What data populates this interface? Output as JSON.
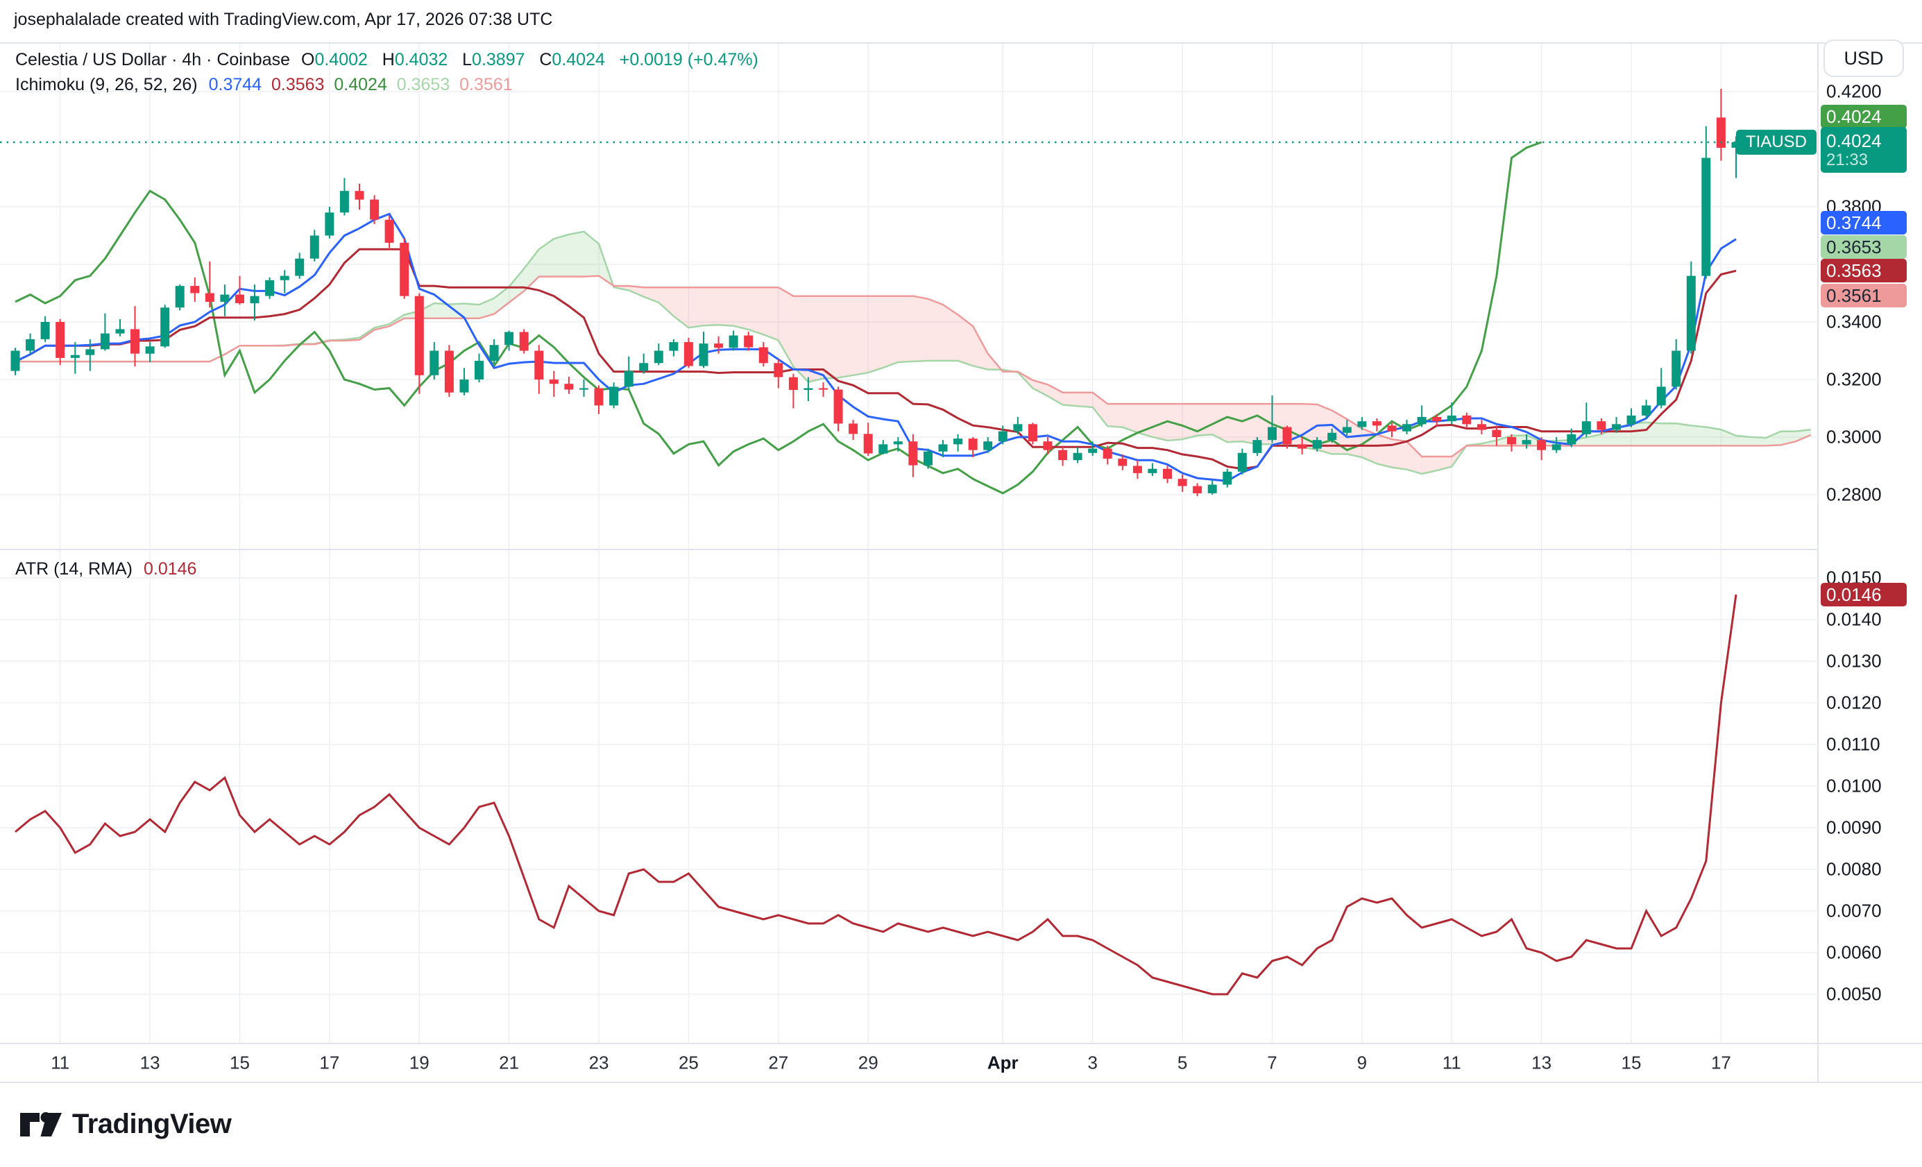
{
  "header": {
    "text": "josephalalade created with TradingView.com, Apr 17, 2026 07:38 UTC"
  },
  "symbol_line": {
    "title": "Celestia / US Dollar · 4h · Coinbase",
    "o_label": "O",
    "o": "0.4002",
    "h_label": "H",
    "h": "0.4032",
    "l_label": "L",
    "l": "0.3897",
    "c_label": "C",
    "c": "0.4024",
    "change": "+0.0019 (+0.47%)"
  },
  "ichimoku_line": {
    "name": "Ichimoku (9, 26, 52, 26)",
    "conversion": "0.3744",
    "base": "0.3563",
    "lagging": "0.4024",
    "lead_a": "0.3653",
    "lead_b": "0.3561"
  },
  "atr_line": {
    "name": "ATR (14, RMA)",
    "value": "0.0146"
  },
  "price_axis": {
    "currency": "USD",
    "labels": [
      {
        "text": "0.4200",
        "value": 0.42
      },
      {
        "text": "0.3800",
        "value": 0.38
      },
      {
        "text": "0.3600",
        "value": 0.36
      },
      {
        "text": "0.3400",
        "value": 0.34
      },
      {
        "text": "0.3200",
        "value": 0.32
      },
      {
        "text": "0.3000",
        "value": 0.3
      },
      {
        "text": "0.2800",
        "value": 0.28
      }
    ],
    "badges": [
      {
        "text": "0.4024",
        "value": 0.4024,
        "bg": "#43A047",
        "fg": "#ffffff",
        "offset": -37,
        "name": "ichimoku-lagging-badge"
      },
      {
        "text": "0.3744",
        "value": 0.3744,
        "bg": "#2962FF",
        "fg": "#ffffff",
        "offset": 0,
        "name": "ichimoku-conversion-badge"
      },
      {
        "text": "0.3653",
        "value": 0.3653,
        "bg": "#A5D6A7",
        "fg": "#1b2733",
        "offset": -3,
        "name": "ichimoku-leada-badge"
      },
      {
        "text": "0.3563",
        "value": 0.3563,
        "bg": "#B22833",
        "fg": "#ffffff",
        "offset": -6,
        "name": "ichimoku-base-badge"
      },
      {
        "text": "0.3561",
        "value": 0.3561,
        "bg": "#EF9A9A",
        "fg": "#1b2733",
        "offset": 29,
        "name": "ichimoku-leadb-badge"
      }
    ],
    "last_price": {
      "symbol": "TIAUSD",
      "price": "0.4024",
      "value": 0.4024,
      "countdown": "21:33",
      "bg": "#089981"
    }
  },
  "atr_axis": {
    "labels": [
      {
        "text": "0.0150",
        "value": 0.015
      },
      {
        "text": "0.0140",
        "value": 0.014
      },
      {
        "text": "0.0130",
        "value": 0.013
      },
      {
        "text": "0.0120",
        "value": 0.012
      },
      {
        "text": "0.0110",
        "value": 0.011
      },
      {
        "text": "0.0100",
        "value": 0.01
      },
      {
        "text": "0.0090",
        "value": 0.009
      },
      {
        "text": "0.0080",
        "value": 0.008
      },
      {
        "text": "0.0070",
        "value": 0.007
      },
      {
        "text": "0.0060",
        "value": 0.006
      },
      {
        "text": "0.0050",
        "value": 0.005
      }
    ],
    "badge": {
      "text": "0.0146",
      "value": 0.0146,
      "bg": "#B22833",
      "fg": "#ffffff"
    }
  },
  "time_axis": {
    "ticks": [
      {
        "label": "11",
        "bar": 3
      },
      {
        "label": "13",
        "bar": 9
      },
      {
        "label": "15",
        "bar": 15
      },
      {
        "label": "17",
        "bar": 21
      },
      {
        "label": "19",
        "bar": 27
      },
      {
        "label": "21",
        "bar": 33
      },
      {
        "label": "23",
        "bar": 39
      },
      {
        "label": "25",
        "bar": 45
      },
      {
        "label": "27",
        "bar": 51
      },
      {
        "label": "29",
        "bar": 57
      },
      {
        "label": "Apr",
        "bar": 66,
        "bold": true
      },
      {
        "label": "3",
        "bar": 72
      },
      {
        "label": "5",
        "bar": 78
      },
      {
        "label": "7",
        "bar": 84
      },
      {
        "label": "9",
        "bar": 90
      },
      {
        "label": "11",
        "bar": 96
      },
      {
        "label": "13",
        "bar": 102
      },
      {
        "label": "15",
        "bar": 108
      },
      {
        "label": "17",
        "bar": 114
      }
    ]
  },
  "footer": {
    "brand": "TradingView"
  },
  "colors": {
    "up": "#089981",
    "down": "#F23645",
    "conversion": "#2962FF",
    "base": "#B22833",
    "lagging": "#43A047",
    "lead_a": "#A5D6A7",
    "lead_b": "#EF9A9A",
    "cloud_green": "rgba(76,175,80,0.14)",
    "cloud_red": "rgba(244,97,97,0.16)",
    "atr": "#B22833",
    "grid": "#eeeff2",
    "border": "#e0e3eb",
    "last_price_line": "#089981"
  },
  "chart_data": [
    {
      "type": "candlestick",
      "title": "Celestia / US Dollar · 4h · Coinbase (TIA/USD)",
      "ylabel": "USD",
      "y_axis": {
        "min": 0.264,
        "max": 0.424,
        "tick_step": 0.02,
        "ticks": [
          0.42,
          0.38,
          0.36,
          0.34,
          0.32,
          0.3,
          0.28
        ]
      },
      "x_axis": {
        "start": "Mar 10",
        "end": "Apr 17",
        "note": "bars are ~8h aggregates of the 4h chart"
      },
      "last_price": 0.4024,
      "ohlc_current": {
        "open": 0.4002,
        "high": 0.4032,
        "low": 0.3897,
        "close": 0.4024,
        "change": 0.0019,
        "change_pct": 0.47
      },
      "ichimoku": {
        "params": [
          9,
          26,
          52,
          26
        ],
        "current": {
          "conversion": 0.3744,
          "base": 0.3563,
          "lagging": 0.4024,
          "lead_a": 0.3653,
          "lead_b": 0.3561
        }
      },
      "candles": [
        [
          0.323,
          0.331,
          0.3215,
          0.33
        ],
        [
          0.33,
          0.336,
          0.329,
          0.334
        ],
        [
          0.334,
          0.342,
          0.333,
          0.34
        ],
        [
          0.34,
          0.341,
          0.325,
          0.3275
        ],
        [
          0.3275,
          0.333,
          0.322,
          0.3285
        ],
        [
          0.3285,
          0.334,
          0.323,
          0.3305
        ],
        [
          0.3305,
          0.343,
          0.33,
          0.336
        ],
        [
          0.336,
          0.341,
          0.335,
          0.3375
        ],
        [
          0.3375,
          0.3455,
          0.3245,
          0.329
        ],
        [
          0.329,
          0.333,
          0.326,
          0.3315
        ],
        [
          0.3315,
          0.346,
          0.331,
          0.345
        ],
        [
          0.345,
          0.353,
          0.344,
          0.3525
        ],
        [
          0.3525,
          0.3555,
          0.347,
          0.35
        ],
        [
          0.35,
          0.361,
          0.345,
          0.347
        ],
        [
          0.347,
          0.353,
          0.342,
          0.3495
        ],
        [
          0.3495,
          0.356,
          0.346,
          0.3465
        ],
        [
          0.3465,
          0.353,
          0.3405,
          0.349
        ],
        [
          0.349,
          0.3555,
          0.348,
          0.3545
        ],
        [
          0.3545,
          0.358,
          0.35,
          0.356
        ],
        [
          0.356,
          0.364,
          0.355,
          0.362
        ],
        [
          0.362,
          0.372,
          0.361,
          0.37
        ],
        [
          0.37,
          0.38,
          0.369,
          0.378
        ],
        [
          0.378,
          0.39,
          0.377,
          0.3855
        ],
        [
          0.3855,
          0.388,
          0.379,
          0.3825
        ],
        [
          0.3825,
          0.384,
          0.374,
          0.3755
        ],
        [
          0.3755,
          0.377,
          0.365,
          0.3675
        ],
        [
          0.3675,
          0.369,
          0.348,
          0.349
        ],
        [
          0.349,
          0.35,
          0.315,
          0.3215
        ],
        [
          0.3215,
          0.333,
          0.32,
          0.33
        ],
        [
          0.33,
          0.332,
          0.314,
          0.3155
        ],
        [
          0.3155,
          0.324,
          0.3145,
          0.32
        ],
        [
          0.32,
          0.329,
          0.319,
          0.3265
        ],
        [
          0.3265,
          0.334,
          0.3255,
          0.332
        ],
        [
          0.332,
          0.337,
          0.33,
          0.3365
        ],
        [
          0.3365,
          0.3375,
          0.329,
          0.33
        ],
        [
          0.33,
          0.332,
          0.315,
          0.32
        ],
        [
          0.32,
          0.323,
          0.314,
          0.3185
        ],
        [
          0.3185,
          0.321,
          0.315,
          0.3165
        ],
        [
          0.3165,
          0.32,
          0.314,
          0.317
        ],
        [
          0.317,
          0.318,
          0.308,
          0.311
        ],
        [
          0.311,
          0.319,
          0.31,
          0.3175
        ],
        [
          0.3175,
          0.328,
          0.3165,
          0.323
        ],
        [
          0.323,
          0.329,
          0.322,
          0.3257
        ],
        [
          0.3257,
          0.3325,
          0.325,
          0.33
        ],
        [
          0.33,
          0.334,
          0.328,
          0.333
        ],
        [
          0.333,
          0.3345,
          0.324,
          0.3247
        ],
        [
          0.3247,
          0.3366,
          0.324,
          0.3325
        ],
        [
          0.3325,
          0.335,
          0.329,
          0.331
        ],
        [
          0.331,
          0.337,
          0.33,
          0.3353
        ],
        [
          0.3353,
          0.3366,
          0.33,
          0.3312
        ],
        [
          0.3312,
          0.333,
          0.3245,
          0.3257
        ],
        [
          0.3257,
          0.327,
          0.317,
          0.3208
        ],
        [
          0.3208,
          0.322,
          0.31,
          0.3164
        ],
        [
          0.3164,
          0.3208,
          0.3125,
          0.317
        ],
        [
          0.317,
          0.319,
          0.314,
          0.3165
        ],
        [
          0.3165,
          0.3175,
          0.302,
          0.3047
        ],
        [
          0.3047,
          0.306,
          0.299,
          0.3011
        ],
        [
          0.3011,
          0.305,
          0.2935,
          0.2943
        ],
        [
          0.2943,
          0.299,
          0.294,
          0.2975
        ],
        [
          0.2975,
          0.3,
          0.295,
          0.2985
        ],
        [
          0.2985,
          0.301,
          0.2861,
          0.2902
        ],
        [
          0.2902,
          0.296,
          0.289,
          0.295
        ],
        [
          0.295,
          0.299,
          0.293,
          0.2975
        ],
        [
          0.2975,
          0.301,
          0.295,
          0.2995
        ],
        [
          0.2995,
          0.3,
          0.293,
          0.2955
        ],
        [
          0.2955,
          0.3,
          0.2945,
          0.2985
        ],
        [
          0.2985,
          0.304,
          0.2975,
          0.302
        ],
        [
          0.302,
          0.307,
          0.301,
          0.3045
        ],
        [
          0.3045,
          0.305,
          0.2975,
          0.2985
        ],
        [
          0.2985,
          0.3,
          0.294,
          0.2955
        ],
        [
          0.2955,
          0.297,
          0.29,
          0.292
        ],
        [
          0.292,
          0.2965,
          0.291,
          0.2945
        ],
        [
          0.2945,
          0.2985,
          0.2935,
          0.296
        ],
        [
          0.296,
          0.297,
          0.2905,
          0.2925
        ],
        [
          0.2925,
          0.294,
          0.2885,
          0.29
        ],
        [
          0.29,
          0.292,
          0.2855,
          0.2875
        ],
        [
          0.2875,
          0.291,
          0.2865,
          0.289
        ],
        [
          0.289,
          0.29,
          0.284,
          0.2855
        ],
        [
          0.2855,
          0.287,
          0.281,
          0.283
        ],
        [
          0.283,
          0.284,
          0.2795,
          0.2805
        ],
        [
          0.2805,
          0.285,
          0.28,
          0.2835
        ],
        [
          0.2835,
          0.289,
          0.2825,
          0.288
        ],
        [
          0.288,
          0.296,
          0.287,
          0.2945
        ],
        [
          0.2945,
          0.3,
          0.2935,
          0.299
        ],
        [
          0.299,
          0.3145,
          0.298,
          0.3035
        ],
        [
          0.3035,
          0.304,
          0.296,
          0.2975
        ],
        [
          0.2975,
          0.3,
          0.294,
          0.296
        ],
        [
          0.296,
          0.3,
          0.295,
          0.299
        ],
        [
          0.299,
          0.303,
          0.298,
          0.3015
        ],
        [
          0.3015,
          0.306,
          0.3005,
          0.3035
        ],
        [
          0.3035,
          0.307,
          0.3025,
          0.3055
        ],
        [
          0.3055,
          0.3065,
          0.302,
          0.304
        ],
        [
          0.304,
          0.305,
          0.3,
          0.302
        ],
        [
          0.302,
          0.306,
          0.301,
          0.3045
        ],
        [
          0.3045,
          0.311,
          0.3035,
          0.307
        ],
        [
          0.307,
          0.308,
          0.304,
          0.3055
        ],
        [
          0.3055,
          0.312,
          0.3045,
          0.3075
        ],
        [
          0.3075,
          0.3085,
          0.303,
          0.3045
        ],
        [
          0.3045,
          0.306,
          0.301,
          0.3025
        ],
        [
          0.3025,
          0.304,
          0.297,
          0.3
        ],
        [
          0.3,
          0.301,
          0.295,
          0.2975
        ],
        [
          0.2975,
          0.301,
          0.296,
          0.299
        ],
        [
          0.299,
          0.3,
          0.292,
          0.2955
        ],
        [
          0.2955,
          0.3,
          0.2945,
          0.2975
        ],
        [
          0.2975,
          0.303,
          0.2965,
          0.301
        ],
        [
          0.301,
          0.312,
          0.3,
          0.3055
        ],
        [
          0.3055,
          0.3065,
          0.301,
          0.3025
        ],
        [
          0.3025,
          0.307,
          0.3015,
          0.3045
        ],
        [
          0.3045,
          0.31,
          0.3035,
          0.3075
        ],
        [
          0.3075,
          0.313,
          0.3065,
          0.311
        ],
        [
          0.311,
          0.324,
          0.31,
          0.3175
        ],
        [
          0.3175,
          0.334,
          0.3165,
          0.33
        ],
        [
          0.33,
          0.361,
          0.329,
          0.356
        ],
        [
          0.356,
          0.408,
          0.355,
          0.397
        ],
        [
          0.411,
          0.421,
          0.396,
          0.4005
        ],
        [
          0.4005,
          0.4045,
          0.39,
          0.4024
        ]
      ]
    },
    {
      "type": "line",
      "title": "ATR (14, RMA)",
      "current": 0.0146,
      "y_axis": {
        "min": 0.0038,
        "max": 0.0155,
        "tick_step": 0.001
      },
      "values": [
        0.0089,
        0.0092,
        0.0094,
        0.009,
        0.0084,
        0.0086,
        0.0091,
        0.0088,
        0.0089,
        0.0092,
        0.0089,
        0.0096,
        0.0101,
        0.0099,
        0.0102,
        0.0093,
        0.0089,
        0.0092,
        0.0089,
        0.0086,
        0.0088,
        0.0086,
        0.0089,
        0.0093,
        0.0095,
        0.0098,
        0.0094,
        0.009,
        0.0088,
        0.0086,
        0.009,
        0.0095,
        0.0096,
        0.0088,
        0.0078,
        0.0068,
        0.0066,
        0.0076,
        0.0073,
        0.007,
        0.0069,
        0.0079,
        0.008,
        0.0077,
        0.0077,
        0.0079,
        0.0075,
        0.0071,
        0.007,
        0.0069,
        0.0068,
        0.0069,
        0.0068,
        0.0067,
        0.0067,
        0.0069,
        0.0067,
        0.0066,
        0.0065,
        0.0067,
        0.0066,
        0.0065,
        0.0066,
        0.0065,
        0.0064,
        0.0065,
        0.0064,
        0.0063,
        0.0065,
        0.0068,
        0.0064,
        0.0064,
        0.0063,
        0.0061,
        0.0059,
        0.0057,
        0.0054,
        0.0053,
        0.0052,
        0.0051,
        0.005,
        0.005,
        0.0055,
        0.0054,
        0.0058,
        0.0059,
        0.0057,
        0.0061,
        0.0063,
        0.0071,
        0.0073,
        0.0072,
        0.0073,
        0.0069,
        0.0066,
        0.0067,
        0.0068,
        0.0066,
        0.0064,
        0.0065,
        0.0068,
        0.0061,
        0.006,
        0.0058,
        0.0059,
        0.0063,
        0.0062,
        0.0061,
        0.0061,
        0.007,
        0.0064,
        0.0066,
        0.0073,
        0.0082,
        0.012,
        0.0146
      ]
    }
  ]
}
